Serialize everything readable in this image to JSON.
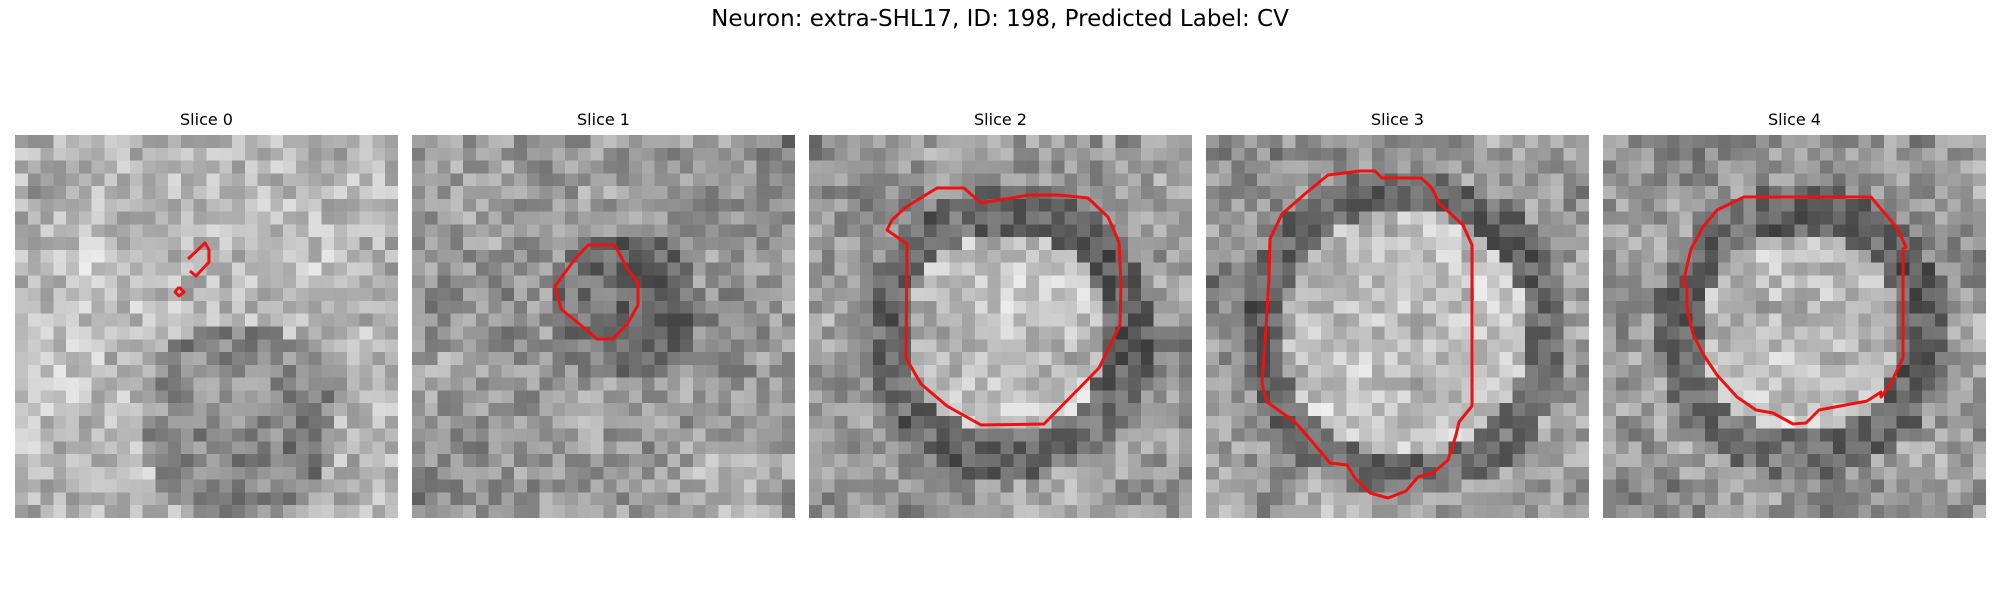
{
  "figure": {
    "title": "Neuron: extra-SHL17, ID: 198, Predicted Label: CV"
  },
  "contour_color": "#ee1111",
  "panels": [
    {
      "title": "Slice 0"
    },
    {
      "title": "Slice 1"
    },
    {
      "title": "Slice 2"
    },
    {
      "title": "Slice 3"
    },
    {
      "title": "Slice 4"
    }
  ]
}
